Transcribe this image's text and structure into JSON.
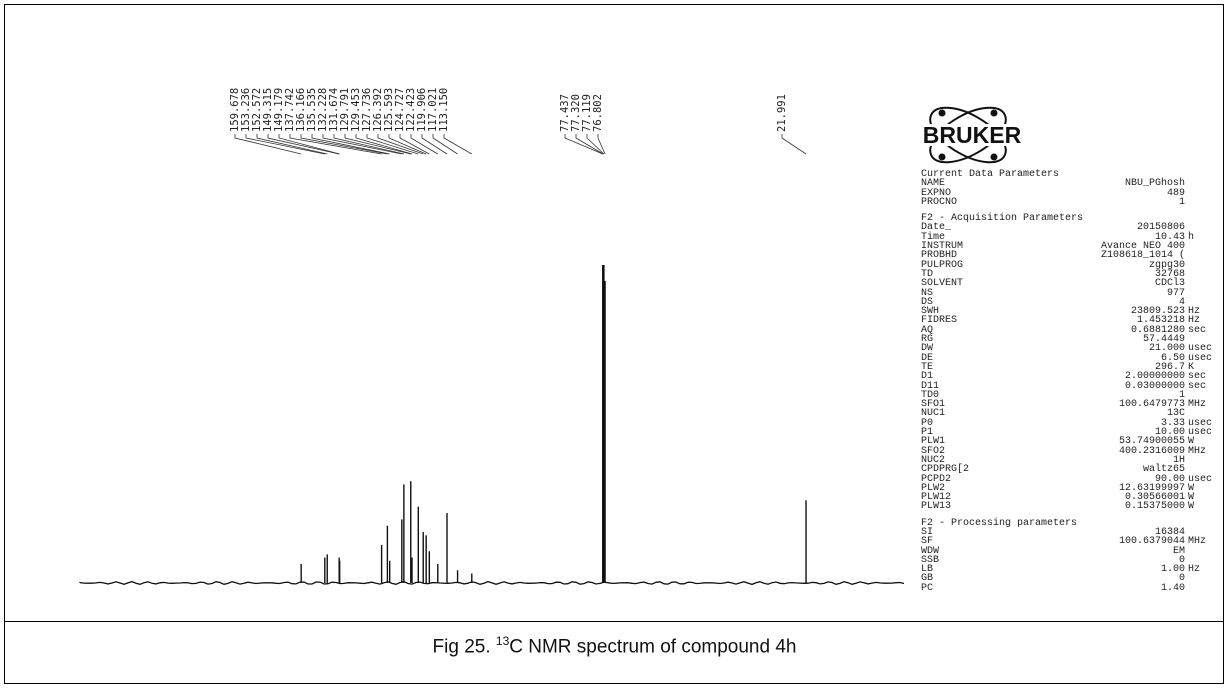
{
  "caption": {
    "prefix": "Fig 25. ",
    "sup": "13",
    "rest": "C NMR spectrum of compound 4h"
  },
  "logo": {
    "text": "BRUKER"
  },
  "chart_data": {
    "type": "line",
    "title": "",
    "xlabel": "",
    "ylabel": "",
    "x_unit": "ppm",
    "xlim": [
      220,
      -5
    ],
    "peak_labels_left": [
      "159.678",
      "153.236",
      "152.572",
      "149.315",
      "149.179",
      "137.742",
      "136.166",
      "135.535",
      "132.228",
      "131.674",
      "129.791",
      "129.453",
      "127.736",
      "126.392",
      "125.593",
      "124.727",
      "122.423",
      "119.906",
      "117.021",
      "113.150"
    ],
    "peak_labels_mid": [
      "77.437",
      "77.320",
      "77.119",
      "76.802"
    ],
    "peak_labels_right": [
      "21.991"
    ],
    "peaks": [
      {
        "ppm": 159.678,
        "h": 0.06
      },
      {
        "ppm": 153.236,
        "h": 0.08
      },
      {
        "ppm": 152.572,
        "h": 0.09
      },
      {
        "ppm": 149.315,
        "h": 0.08
      },
      {
        "ppm": 149.179,
        "h": 0.07
      },
      {
        "ppm": 137.742,
        "h": 0.12
      },
      {
        "ppm": 136.166,
        "h": 0.18
      },
      {
        "ppm": 135.535,
        "h": 0.07
      },
      {
        "ppm": 132.228,
        "h": 0.2
      },
      {
        "ppm": 131.674,
        "h": 0.31
      },
      {
        "ppm": 129.791,
        "h": 0.32
      },
      {
        "ppm": 129.453,
        "h": 0.08
      },
      {
        "ppm": 127.736,
        "h": 0.24
      },
      {
        "ppm": 126.392,
        "h": 0.16
      },
      {
        "ppm": 125.593,
        "h": 0.15
      },
      {
        "ppm": 124.727,
        "h": 0.1
      },
      {
        "ppm": 122.423,
        "h": 0.06
      },
      {
        "ppm": 119.906,
        "h": 0.22
      },
      {
        "ppm": 117.021,
        "h": 0.04
      },
      {
        "ppm": 113.15,
        "h": 0.03
      },
      {
        "ppm": 77.437,
        "h": 1.0
      },
      {
        "ppm": 77.32,
        "h": 1.0
      },
      {
        "ppm": 77.119,
        "h": 1.0
      },
      {
        "ppm": 76.802,
        "h": 0.95
      },
      {
        "ppm": 21.991,
        "h": 0.26
      }
    ]
  },
  "params": {
    "current_title": "Current Data Parameters",
    "current": [
      {
        "k": "NAME",
        "v": "NBU_PGhosh",
        "u": ""
      },
      {
        "k": "EXPNO",
        "v": "489",
        "u": ""
      },
      {
        "k": "PROCNO",
        "v": "1",
        "u": ""
      }
    ],
    "acq_title": "F2 - Acquisition Parameters",
    "acq": [
      {
        "k": "Date_",
        "v": "20150806",
        "u": ""
      },
      {
        "k": "Time",
        "v": "10.43",
        "u": "h"
      },
      {
        "k": "INSTRUM",
        "v": "Avance NEO 400",
        "u": ""
      },
      {
        "k": "PROBHD",
        "v": "Z108618_1014 (",
        "u": ""
      },
      {
        "k": "PULPROG",
        "v": "zgpg30",
        "u": ""
      },
      {
        "k": "TD",
        "v": "32768",
        "u": ""
      },
      {
        "k": "SOLVENT",
        "v": "CDCl3",
        "u": ""
      },
      {
        "k": "NS",
        "v": "977",
        "u": ""
      },
      {
        "k": "DS",
        "v": "4",
        "u": ""
      },
      {
        "k": "SWH",
        "v": "23809.523",
        "u": "Hz"
      },
      {
        "k": "FIDRES",
        "v": "1.453218",
        "u": "Hz"
      },
      {
        "k": "AQ",
        "v": "0.6881280",
        "u": "sec"
      },
      {
        "k": "RG",
        "v": "57.4449",
        "u": ""
      },
      {
        "k": "DW",
        "v": "21.000",
        "u": "usec"
      },
      {
        "k": "DE",
        "v": "6.50",
        "u": "usec"
      },
      {
        "k": "TE",
        "v": "296.7",
        "u": "K"
      },
      {
        "k": "D1",
        "v": "2.00000000",
        "u": "sec"
      },
      {
        "k": "D11",
        "v": "0.03000000",
        "u": "sec"
      },
      {
        "k": "TD0",
        "v": "1",
        "u": ""
      },
      {
        "k": "SFO1",
        "v": "100.6479773",
        "u": "MHz"
      },
      {
        "k": "NUC1",
        "v": "13C",
        "u": ""
      },
      {
        "k": "P0",
        "v": "3.33",
        "u": "usec"
      },
      {
        "k": "P1",
        "v": "10.00",
        "u": "usec"
      },
      {
        "k": "PLW1",
        "v": "53.74900055",
        "u": "W"
      },
      {
        "k": "SFO2",
        "v": "400.2316009",
        "u": "MHz"
      },
      {
        "k": "NUC2",
        "v": "1H",
        "u": ""
      },
      {
        "k": "CPDPRG[2",
        "v": "waltz65",
        "u": ""
      },
      {
        "k": "PCPD2",
        "v": "90.00",
        "u": "usec"
      },
      {
        "k": "PLW2",
        "v": "12.63199997",
        "u": "W"
      },
      {
        "k": "PLW12",
        "v": "0.30566001",
        "u": "W"
      },
      {
        "k": "PLW13",
        "v": "0.15375000",
        "u": "W"
      }
    ],
    "proc_title": "F2 - Processing parameters",
    "proc": [
      {
        "k": "SI",
        "v": "16384",
        "u": ""
      },
      {
        "k": "SF",
        "v": "100.6379044",
        "u": "MHz"
      },
      {
        "k": "WDW",
        "v": "EM",
        "u": ""
      },
      {
        "k": "SSB",
        "v": "0",
        "u": ""
      },
      {
        "k": "LB",
        "v": "1.00",
        "u": "Hz"
      },
      {
        "k": "GB",
        "v": "0",
        "u": ""
      },
      {
        "k": "PC",
        "v": "1.40",
        "u": ""
      }
    ]
  }
}
